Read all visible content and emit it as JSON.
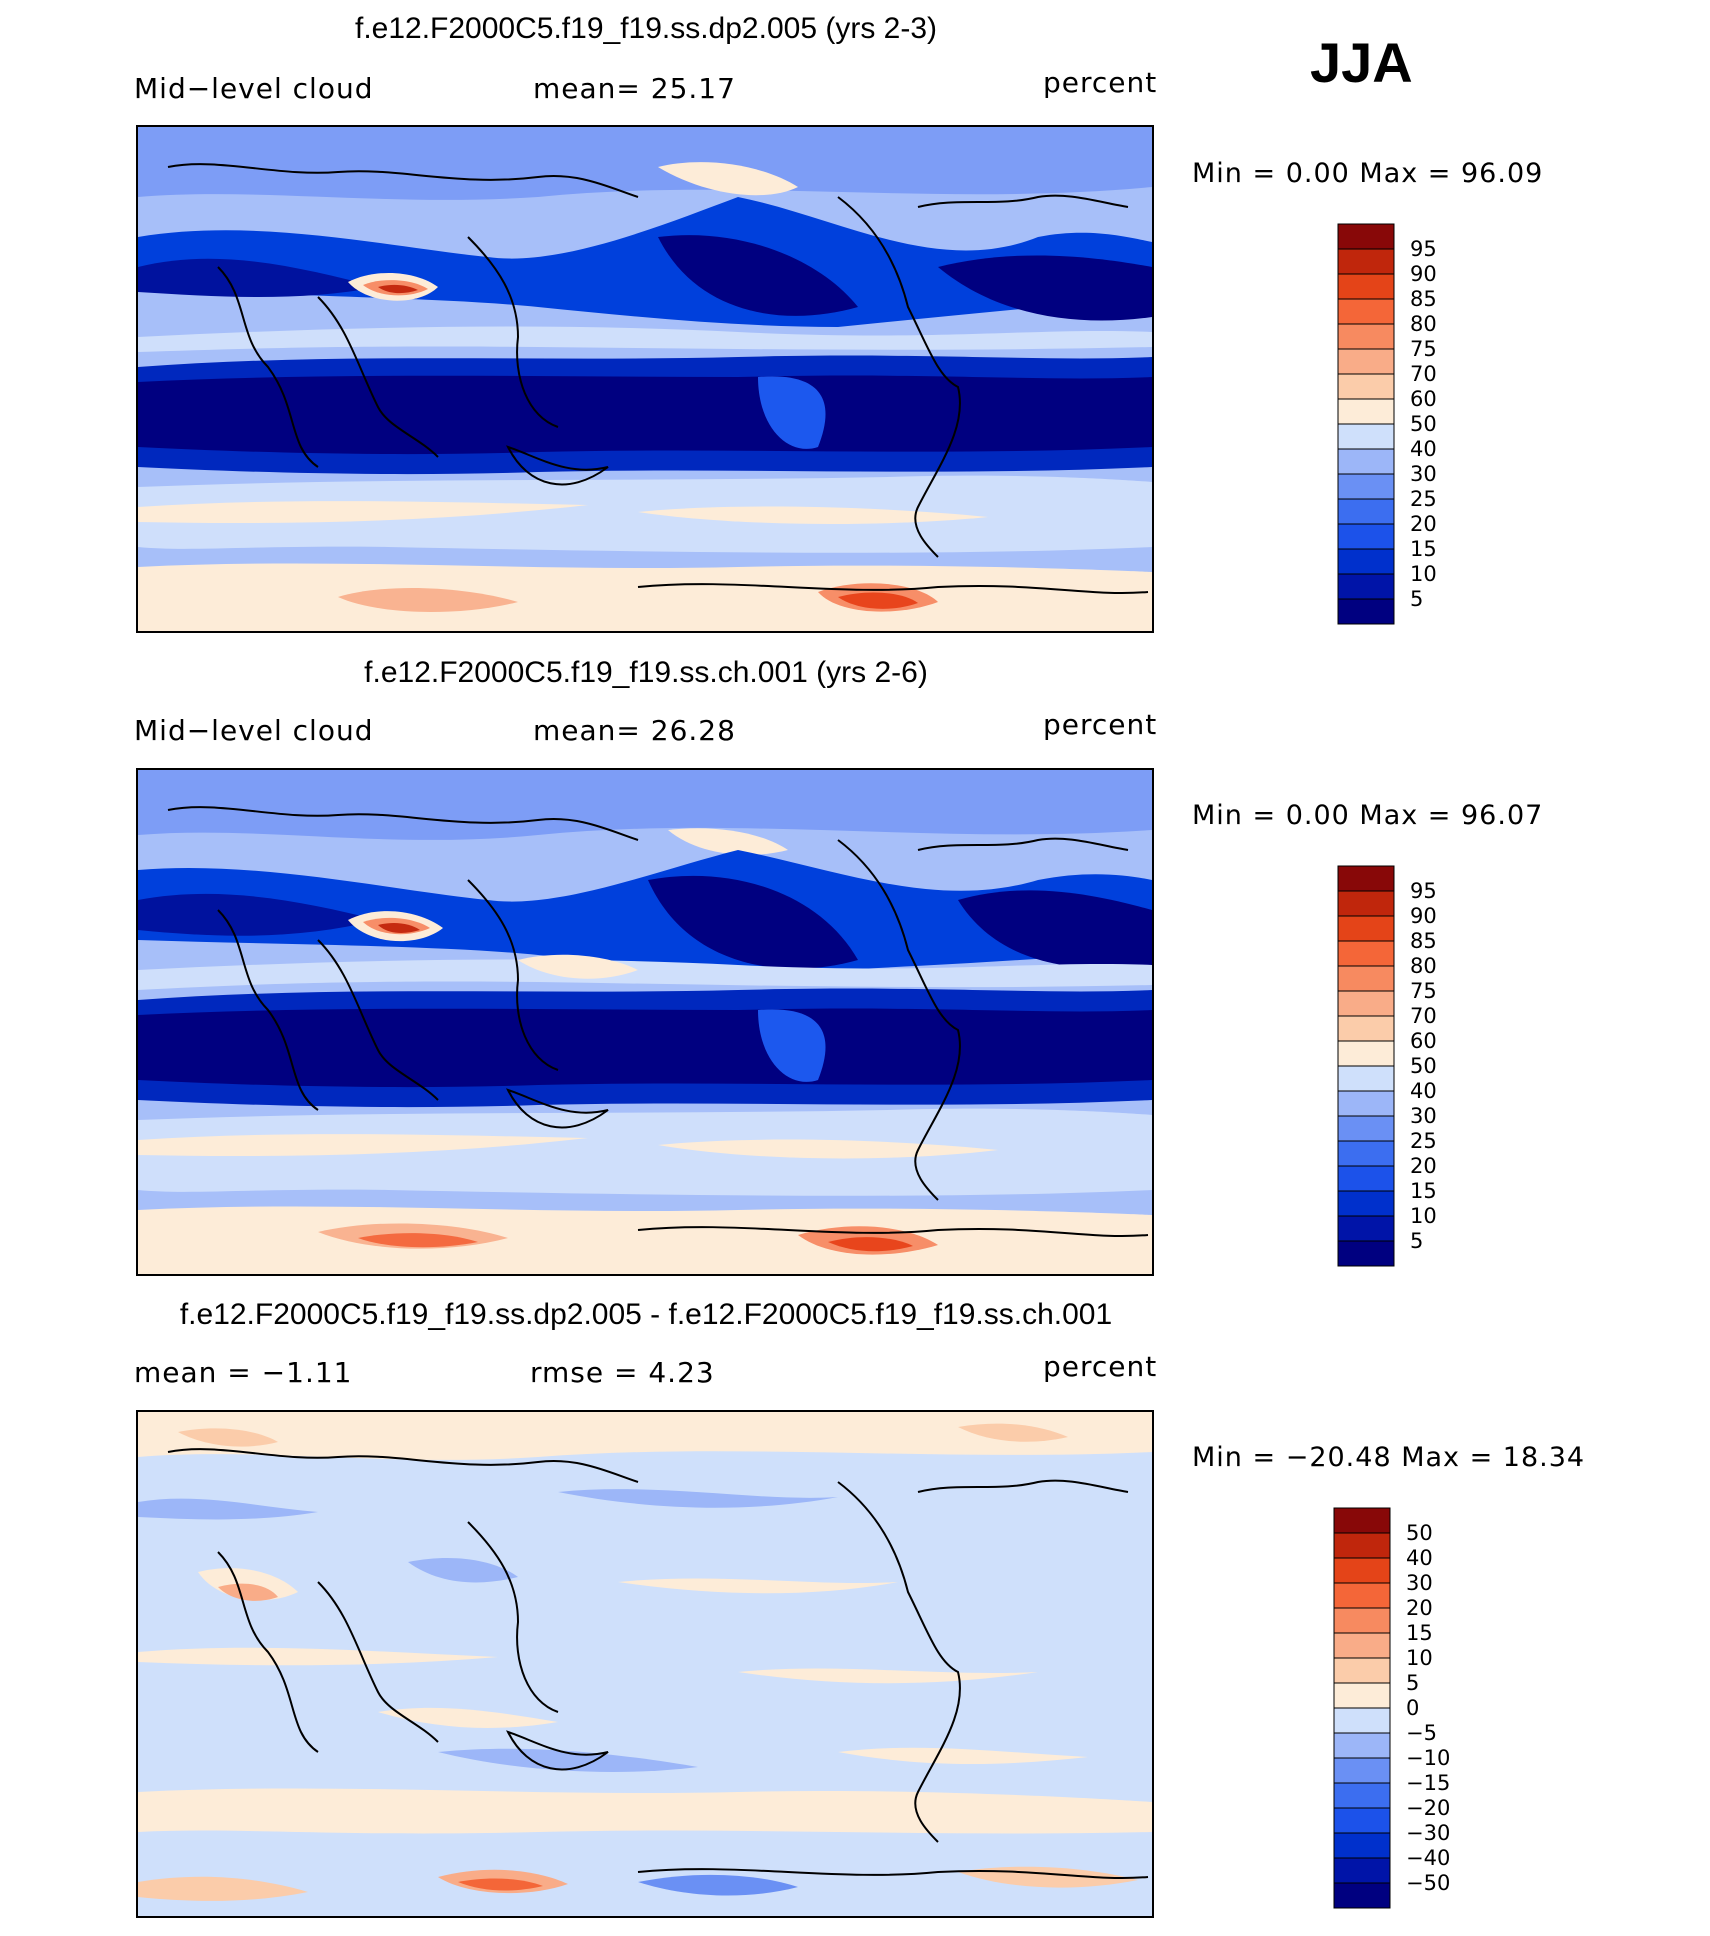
{
  "season": "JJA",
  "colors": {
    "levels_18": [
      "#000080",
      "#00129e",
      "#0028be",
      "#0040dc",
      "#1c58ee",
      "#4a7af4",
      "#7d9df6",
      "#a7bff9",
      "#cfdffb",
      "#e9f0fd",
      "#fdecd8",
      "#fbd0b3",
      "#f9b391",
      "#f78e68",
      "#f46a40",
      "#e8451c",
      "#c52a10",
      "#8e0a0a"
    ],
    "levels_16": [
      "#000080",
      "#0014a8",
      "#0030cc",
      "#1c52ea",
      "#3c6ef0",
      "#6a90f4",
      "#9cb6f8",
      "#cfe0fb",
      "#fdecd8",
      "#fbccaa",
      "#f9ac88",
      "#f78a60",
      "#f46638",
      "#e44418",
      "#c0260c",
      "#880808"
    ]
  },
  "panels": [
    {
      "title": "f.e12.F2000C5.f19_f19.ss.dp2.005 (yrs 2-3)",
      "left_label": "Mid−level  cloud",
      "mid_label": "mean=   25.17",
      "units": "percent",
      "minmax": "Min =    0.00  Max =   96.09"
    },
    {
      "title": "f.e12.F2000C5.f19_f19.ss.ch.001 (yrs 2-6)",
      "left_label": "Mid−level  cloud",
      "mid_label": "mean=   26.28",
      "units": "percent",
      "minmax": "Min =    0.00  Max =   96.07"
    },
    {
      "title": "f.e12.F2000C5.f19_f19.ss.dp2.005 - f.e12.F2000C5.f19_f19.ss.ch.001",
      "left_label": "mean =   −1.11",
      "mid_label": "rmse =    4.23",
      "units": "percent",
      "minmax": "Min = −20.48  Max =   18.34"
    }
  ],
  "chart_data": [
    {
      "type": "heatmap",
      "title": "f.e12.F2000C5.f19_f19.ss.dp2.005 (yrs 2-3)",
      "variable": "Mid-level cloud",
      "units": "percent",
      "season": "JJA",
      "mean": 25.17,
      "min": 0.0,
      "max": 96.09,
      "colorbar_levels": [
        "95",
        "90",
        "85",
        "80",
        "75",
        "70",
        "60",
        "50",
        "40",
        "30",
        "25",
        "20",
        "15",
        "10",
        "5"
      ]
    },
    {
      "type": "heatmap",
      "title": "f.e12.F2000C5.f19_f19.ss.ch.001 (yrs 2-6)",
      "variable": "Mid-level cloud",
      "units": "percent",
      "season": "JJA",
      "mean": 26.28,
      "min": 0.0,
      "max": 96.07,
      "colorbar_levels": [
        "95",
        "90",
        "85",
        "80",
        "75",
        "70",
        "60",
        "50",
        "40",
        "30",
        "25",
        "20",
        "15",
        "10",
        "5"
      ]
    },
    {
      "type": "heatmap",
      "title": "f.e12.F2000C5.f19_f19.ss.dp2.005 - f.e12.F2000C5.f19_f19.ss.ch.001",
      "units": "percent",
      "season": "JJA",
      "mean": -1.11,
      "rmse": 4.23,
      "min": -20.48,
      "max": 18.34,
      "colorbar_levels": [
        "50",
        "40",
        "30",
        "20",
        "15",
        "10",
        "5",
        "0",
        "−5",
        "−10",
        "−15",
        "−20",
        "−30",
        "−40",
        "−50"
      ]
    }
  ]
}
